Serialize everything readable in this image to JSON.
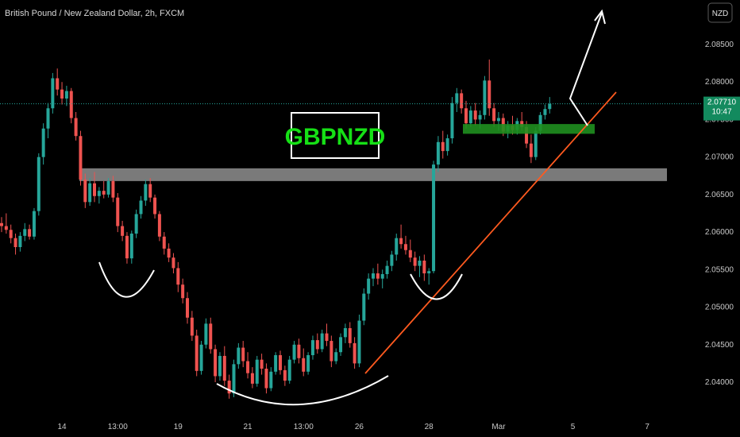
{
  "symbol_title": "British Pound / New Zealand Dollar, 2h, FXCM",
  "currency_badge": "NZD",
  "label_box": "GBPNZD",
  "last_price": "2.07710",
  "countdown": "10:47",
  "colors": {
    "background": "#000000",
    "bull": "#26a69a",
    "bear": "#ef5350",
    "zone": "#7a7a7a",
    "green_zone": "#1f8f1f",
    "trendline": "#ff5a1f",
    "label_green": "#16e016",
    "price_tag": "#138a5e",
    "curve": "#ffffff"
  },
  "chart_data": {
    "type": "candlestick",
    "title": "British Pound / New Zealand Dollar, 2h, FXCM",
    "ylim": [
      2.0363,
      2.0898
    ],
    "y_ticks": [
      {
        "value": 2.085,
        "label": "2.08500"
      },
      {
        "value": 2.08,
        "label": "2.08000"
      },
      {
        "value": 2.075,
        "label": "2.07500"
      },
      {
        "value": 2.07,
        "label": "2.07000"
      },
      {
        "value": 2.065,
        "label": "2.06500"
      },
      {
        "value": 2.06,
        "label": "2.06000"
      },
      {
        "value": 2.055,
        "label": "2.05500"
      },
      {
        "value": 2.05,
        "label": "2.05000"
      },
      {
        "value": 2.045,
        "label": "2.04500"
      },
      {
        "value": 2.04,
        "label": "2.04000"
      }
    ],
    "x_ticks": [
      {
        "label": "14",
        "index": 13
      },
      {
        "label": "13:00",
        "index": 25
      },
      {
        "label": "19",
        "index": 38
      },
      {
        "label": "21",
        "index": 53
      },
      {
        "label": "13:00",
        "index": 65
      },
      {
        "label": "26",
        "index": 77
      },
      {
        "label": "28",
        "index": 92
      },
      {
        "label": "Mar",
        "index": 107
      },
      {
        "label": "5",
        "index": 123
      },
      {
        "label": "7",
        "index": 139
      }
    ],
    "candles": [
      [
        2.0612,
        2.062,
        2.06,
        2.0608
      ],
      [
        2.0608,
        2.0625,
        2.0598,
        2.0603
      ],
      [
        2.0603,
        2.061,
        2.0585,
        2.0592
      ],
      [
        2.0592,
        2.0598,
        2.057,
        2.058
      ],
      [
        2.058,
        2.06,
        2.0574,
        2.0595
      ],
      [
        2.0595,
        2.0612,
        2.0588,
        2.0604
      ],
      [
        2.0604,
        2.061,
        2.059,
        2.0594
      ],
      [
        2.0594,
        2.0632,
        2.059,
        2.0628
      ],
      [
        2.0628,
        2.0705,
        2.0622,
        2.07
      ],
      [
        2.07,
        2.0745,
        2.069,
        2.0738
      ],
      [
        2.0738,
        2.0772,
        2.0725,
        2.0765
      ],
      [
        2.0765,
        2.0812,
        2.0758,
        2.0805
      ],
      [
        2.0805,
        2.0818,
        2.0782,
        2.079
      ],
      [
        2.079,
        2.08,
        2.077,
        2.0778
      ],
      [
        2.0778,
        2.0795,
        2.0768,
        2.0788
      ],
      [
        2.0788,
        2.0792,
        2.0745,
        2.0752
      ],
      [
        2.0752,
        2.076,
        2.0722,
        2.0728
      ],
      [
        2.0728,
        2.0735,
        2.0662,
        2.067
      ],
      [
        2.067,
        2.0678,
        2.0632,
        2.064
      ],
      [
        2.064,
        2.0672,
        2.0635,
        2.0665
      ],
      [
        2.0665,
        2.068,
        2.064,
        2.0648
      ],
      [
        2.0648,
        2.066,
        2.0638,
        2.0655
      ],
      [
        2.0655,
        2.0668,
        2.0645,
        2.065
      ],
      [
        2.065,
        2.0672,
        2.0646,
        2.0668
      ],
      [
        2.0668,
        2.0675,
        2.064,
        2.0646
      ],
      [
        2.0646,
        2.0652,
        2.06,
        2.0608
      ],
      [
        2.0608,
        2.0615,
        2.0588,
        2.0595
      ],
      [
        2.0595,
        2.06,
        2.0558,
        2.0565
      ],
      [
        2.0565,
        2.0602,
        2.0558,
        2.0598
      ],
      [
        2.0598,
        2.063,
        2.0592,
        2.0624
      ],
      [
        2.0624,
        2.0648,
        2.0618,
        2.0642
      ],
      [
        2.0642,
        2.067,
        2.0635,
        2.0664
      ],
      [
        2.0664,
        2.0672,
        2.064,
        2.0646
      ],
      [
        2.0646,
        2.065,
        2.0618,
        2.0624
      ],
      [
        2.0624,
        2.0628,
        2.0588,
        2.0594
      ],
      [
        2.0594,
        2.06,
        2.057,
        2.0578
      ],
      [
        2.0578,
        2.0585,
        2.056,
        2.0566
      ],
      [
        2.0566,
        2.0572,
        2.0545,
        2.0552
      ],
      [
        2.0552,
        2.056,
        2.052,
        2.053
      ],
      [
        2.053,
        2.0538,
        2.0505,
        2.0512
      ],
      [
        2.0512,
        2.052,
        2.0478,
        2.0486
      ],
      [
        2.0486,
        2.0495,
        2.0455,
        2.0462
      ],
      [
        2.0462,
        2.047,
        2.0408,
        2.0415
      ],
      [
        2.0415,
        2.0455,
        2.041,
        2.045
      ],
      [
        2.045,
        2.0485,
        2.0445,
        2.0478
      ],
      [
        2.0478,
        2.0486,
        2.0438,
        2.0444
      ],
      [
        2.0444,
        2.045,
        2.04,
        2.0408
      ],
      [
        2.0408,
        2.044,
        2.0402,
        2.0435
      ],
      [
        2.0435,
        2.0448,
        2.0395,
        2.0402
      ],
      [
        2.0402,
        2.041,
        2.0378,
        2.0385
      ],
      [
        2.0385,
        2.043,
        2.038,
        2.0424
      ],
      [
        2.0424,
        2.0452,
        2.0418,
        2.0446
      ],
      [
        2.0446,
        2.0455,
        2.042,
        2.0428
      ],
      [
        2.0428,
        2.044,
        2.0405,
        2.0412
      ],
      [
        2.0412,
        2.042,
        2.0392,
        2.0398
      ],
      [
        2.0398,
        2.0435,
        2.0394,
        2.043
      ],
      [
        2.043,
        2.0438,
        2.041,
        2.0418
      ],
      [
        2.0418,
        2.0425,
        2.0385,
        2.0392
      ],
      [
        2.0392,
        2.042,
        2.0388,
        2.0414
      ],
      [
        2.0414,
        2.044,
        2.041,
        2.0436
      ],
      [
        2.0436,
        2.0442,
        2.041,
        2.0416
      ],
      [
        2.0416,
        2.0422,
        2.0395,
        2.0402
      ],
      [
        2.0402,
        2.0435,
        2.0398,
        2.043
      ],
      [
        2.043,
        2.0455,
        2.0425,
        2.045
      ],
      [
        2.045,
        2.0458,
        2.0425,
        2.0432
      ],
      [
        2.0432,
        2.0445,
        2.0408,
        2.0414
      ],
      [
        2.0414,
        2.044,
        2.041,
        2.0436
      ],
      [
        2.0436,
        2.0462,
        2.043,
        2.0456
      ],
      [
        2.0456,
        2.0465,
        2.0438,
        2.0444
      ],
      [
        2.0444,
        2.047,
        2.044,
        2.0465
      ],
      [
        2.0465,
        2.0478,
        2.0448,
        2.0455
      ],
      [
        2.0455,
        2.0462,
        2.042,
        2.0428
      ],
      [
        2.0428,
        2.0445,
        2.0424,
        2.044
      ],
      [
        2.044,
        2.0465,
        2.0435,
        2.046
      ],
      [
        2.046,
        2.0478,
        2.0452,
        2.0472
      ],
      [
        2.0472,
        2.048,
        2.0446,
        2.0452
      ],
      [
        2.0452,
        2.046,
        2.0418,
        2.0425
      ],
      [
        2.0425,
        2.049,
        2.042,
        2.0482
      ],
      [
        2.0482,
        2.0525,
        2.0476,
        2.0518
      ],
      [
        2.0518,
        2.0545,
        2.051,
        2.0538
      ],
      [
        2.0538,
        2.0552,
        2.0528,
        2.0545
      ],
      [
        2.0545,
        2.0558,
        2.053,
        2.0538
      ],
      [
        2.0538,
        2.055,
        2.0525,
        2.0544
      ],
      [
        2.0544,
        2.0562,
        2.0538,
        2.0555
      ],
      [
        2.0555,
        2.0575,
        2.0548,
        2.057
      ],
      [
        2.057,
        2.0598,
        2.0562,
        2.0592
      ],
      [
        2.0592,
        2.061,
        2.0578,
        2.0584
      ],
      [
        2.0584,
        2.0595,
        2.057,
        2.0576
      ],
      [
        2.0576,
        2.059,
        2.056,
        2.0566
      ],
      [
        2.0566,
        2.0574,
        2.0548,
        2.0555
      ],
      [
        2.0555,
        2.0568,
        2.054,
        2.0562
      ],
      [
        2.0562,
        2.057,
        2.0535,
        2.0545
      ],
      [
        2.0545,
        2.0552,
        2.053,
        2.0548
      ],
      [
        2.0548,
        2.0695,
        2.0545,
        2.069
      ],
      [
        2.069,
        2.0728,
        2.068,
        2.072
      ],
      [
        2.072,
        2.0735,
        2.0698,
        2.0708
      ],
      [
        2.0708,
        2.073,
        2.0702,
        2.0725
      ],
      [
        2.0725,
        2.078,
        2.0718,
        2.0772
      ],
      [
        2.0772,
        2.0792,
        2.076,
        2.0785
      ],
      [
        2.0785,
        2.079,
        2.0758,
        2.0765
      ],
      [
        2.0765,
        2.0775,
        2.0738,
        2.0745
      ],
      [
        2.0745,
        2.0768,
        2.074,
        2.0762
      ],
      [
        2.0762,
        2.0772,
        2.0742,
        2.075
      ],
      [
        2.075,
        2.0762,
        2.0738,
        2.0756
      ],
      [
        2.0756,
        2.0808,
        2.075,
        2.0802
      ],
      [
        2.0802,
        2.083,
        2.0755,
        2.0765
      ],
      [
        2.0765,
        2.0772,
        2.074,
        2.0748
      ],
      [
        2.0748,
        2.076,
        2.0735,
        2.0752
      ],
      [
        2.0752,
        2.0758,
        2.0728,
        2.0734
      ],
      [
        2.0734,
        2.0748,
        2.0725,
        2.0742
      ],
      [
        2.0742,
        2.0755,
        2.073,
        2.0736
      ],
      [
        2.0736,
        2.0752,
        2.073,
        2.0748
      ],
      [
        2.0748,
        2.076,
        2.0735,
        2.074
      ],
      [
        2.074,
        2.0748,
        2.0712,
        2.0718
      ],
      [
        2.0718,
        2.073,
        2.0692,
        2.07
      ],
      [
        2.07,
        2.074,
        2.0696,
        2.0735
      ],
      [
        2.0735,
        2.076,
        2.073,
        2.0756
      ],
      [
        2.0756,
        2.077,
        2.075,
        2.0764
      ],
      [
        2.0764,
        2.078,
        2.0758,
        2.0771
      ]
    ],
    "annotations": {
      "resistance_zone": [
        2.0668,
        2.0685
      ],
      "support_zone": [
        2.0731,
        2.0744
      ],
      "label": "GBPNZD"
    }
  }
}
